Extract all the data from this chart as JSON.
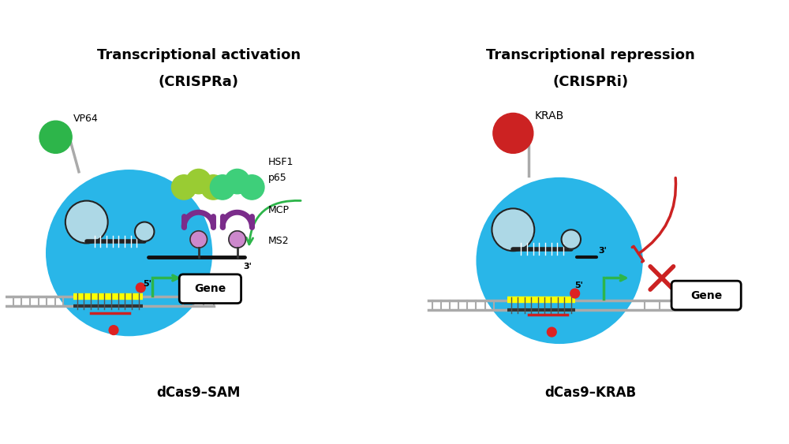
{
  "bg_color": "#ffffff",
  "left_title_line1": "Transcriptional activation",
  "left_title_line2": "(CRISPRa)",
  "right_title_line1": "Transcriptional repression",
  "right_title_line2": "(CRISPRi)",
  "left_subtitle": "dCas9–SAM",
  "right_subtitle": "dCas9–KRAB",
  "cas9_color": "#29b6e8",
  "cas9_color_dark": "#1a9fcf",
  "dna_color": "#aaaaaa",
  "sgRNA_color": "#222222",
  "vp64_color": "#2db54a",
  "hsf1_color": "#3ecf7a",
  "p65_color": "#99cc33",
  "mcp_color": "#7b2d8b",
  "ms2_color": "#cc88cc",
  "krab_color": "#cc2222",
  "arrow_green": "#2db54a",
  "arrow_red": "#cc2222",
  "target_color": "#ffff00",
  "red_dot_color": "#dd2222",
  "red_line_color": "#cc2222"
}
